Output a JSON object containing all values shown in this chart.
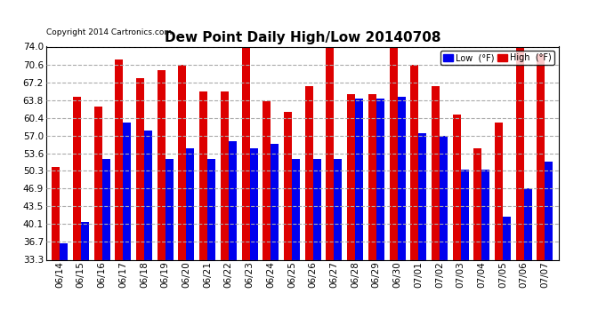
{
  "title": "Dew Point Daily High/Low 20140708",
  "copyright": "Copyright 2014 Cartronics.com",
  "background_color": "#ffffff",
  "plot_background": "#ffffff",
  "bar_color_low": "#0000ee",
  "bar_color_high": "#dd0000",
  "grid_color": "#aaaaaa",
  "ymin": 33.3,
  "ymax": 74.0,
  "yticks": [
    33.3,
    36.7,
    40.1,
    43.5,
    46.9,
    50.3,
    53.6,
    57.0,
    60.4,
    63.8,
    67.2,
    70.6,
    74.0
  ],
  "dates": [
    "06/14",
    "06/15",
    "06/16",
    "06/17",
    "06/18",
    "06/19",
    "06/20",
    "06/21",
    "06/22",
    "06/23",
    "06/24",
    "06/25",
    "06/26",
    "06/27",
    "06/28",
    "06/29",
    "06/30",
    "07/01",
    "07/02",
    "07/03",
    "07/04",
    "07/05",
    "07/06",
    "07/07"
  ],
  "high": [
    51.0,
    64.5,
    62.5,
    71.5,
    68.0,
    69.5,
    70.5,
    65.5,
    65.5,
    74.0,
    63.5,
    61.5,
    66.5,
    74.0,
    65.0,
    65.0,
    74.5,
    70.5,
    66.5,
    61.0,
    54.5,
    59.5,
    74.0,
    72.5
  ],
  "low": [
    36.5,
    40.5,
    52.5,
    59.5,
    58.0,
    52.5,
    54.5,
    52.5,
    56.0,
    54.5,
    55.5,
    52.5,
    52.5,
    52.5,
    64.0,
    64.0,
    64.5,
    57.5,
    57.0,
    50.5,
    50.5,
    41.5,
    47.0,
    52.0
  ],
  "legend_low_label": "Low  (°F)",
  "legend_high_label": "High  (°F)"
}
